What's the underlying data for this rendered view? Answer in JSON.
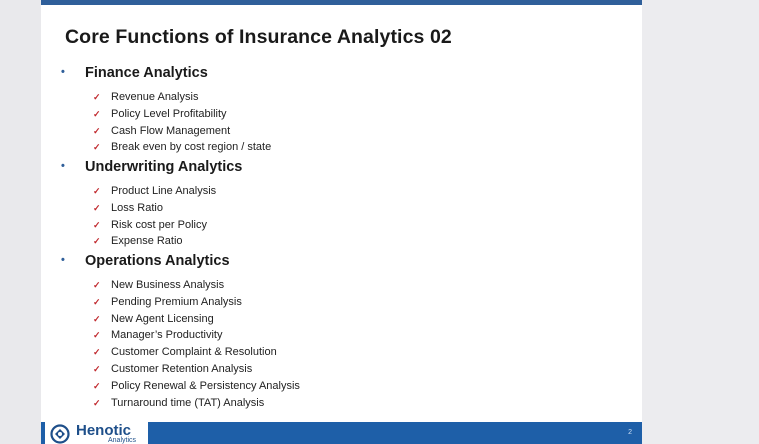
{
  "slide": {
    "title": "Core Functions of Insurance Analytics 02",
    "bullet_symbol": "•",
    "check_symbol": "✓",
    "sections": [
      {
        "heading": "Finance Analytics",
        "items": [
          "Revenue Analysis",
          "Policy Level Profitability",
          "Cash Flow Management",
          "Break even by cost region / state"
        ]
      },
      {
        "heading": "Underwriting Analytics",
        "items": [
          "Product Line Analysis",
          "Loss Ratio",
          "Risk cost per Policy",
          "Expense Ratio"
        ]
      },
      {
        "heading": "Operations Analytics",
        "items": [
          "New Business Analysis",
          "Pending Premium Analysis",
          "New Agent Licensing",
          "Manager’s Productivity",
          "Customer Complaint & Resolution",
          "Customer Retention Analysis",
          "Policy Renewal & Persistency Analysis",
          "Turnaround time (TAT) Analysis"
        ]
      }
    ]
  },
  "footer": {
    "logo_name": "Henotic",
    "logo_sub": "Analytics",
    "page_number": "2"
  },
  "colors": {
    "accent_blue": "#1e5fa8",
    "check_red": "#c0282d"
  },
  "icons": {
    "logo": "henotic-logo-icon",
    "bullet": "bullet-dot-icon",
    "check": "red-checkmark-icon"
  }
}
